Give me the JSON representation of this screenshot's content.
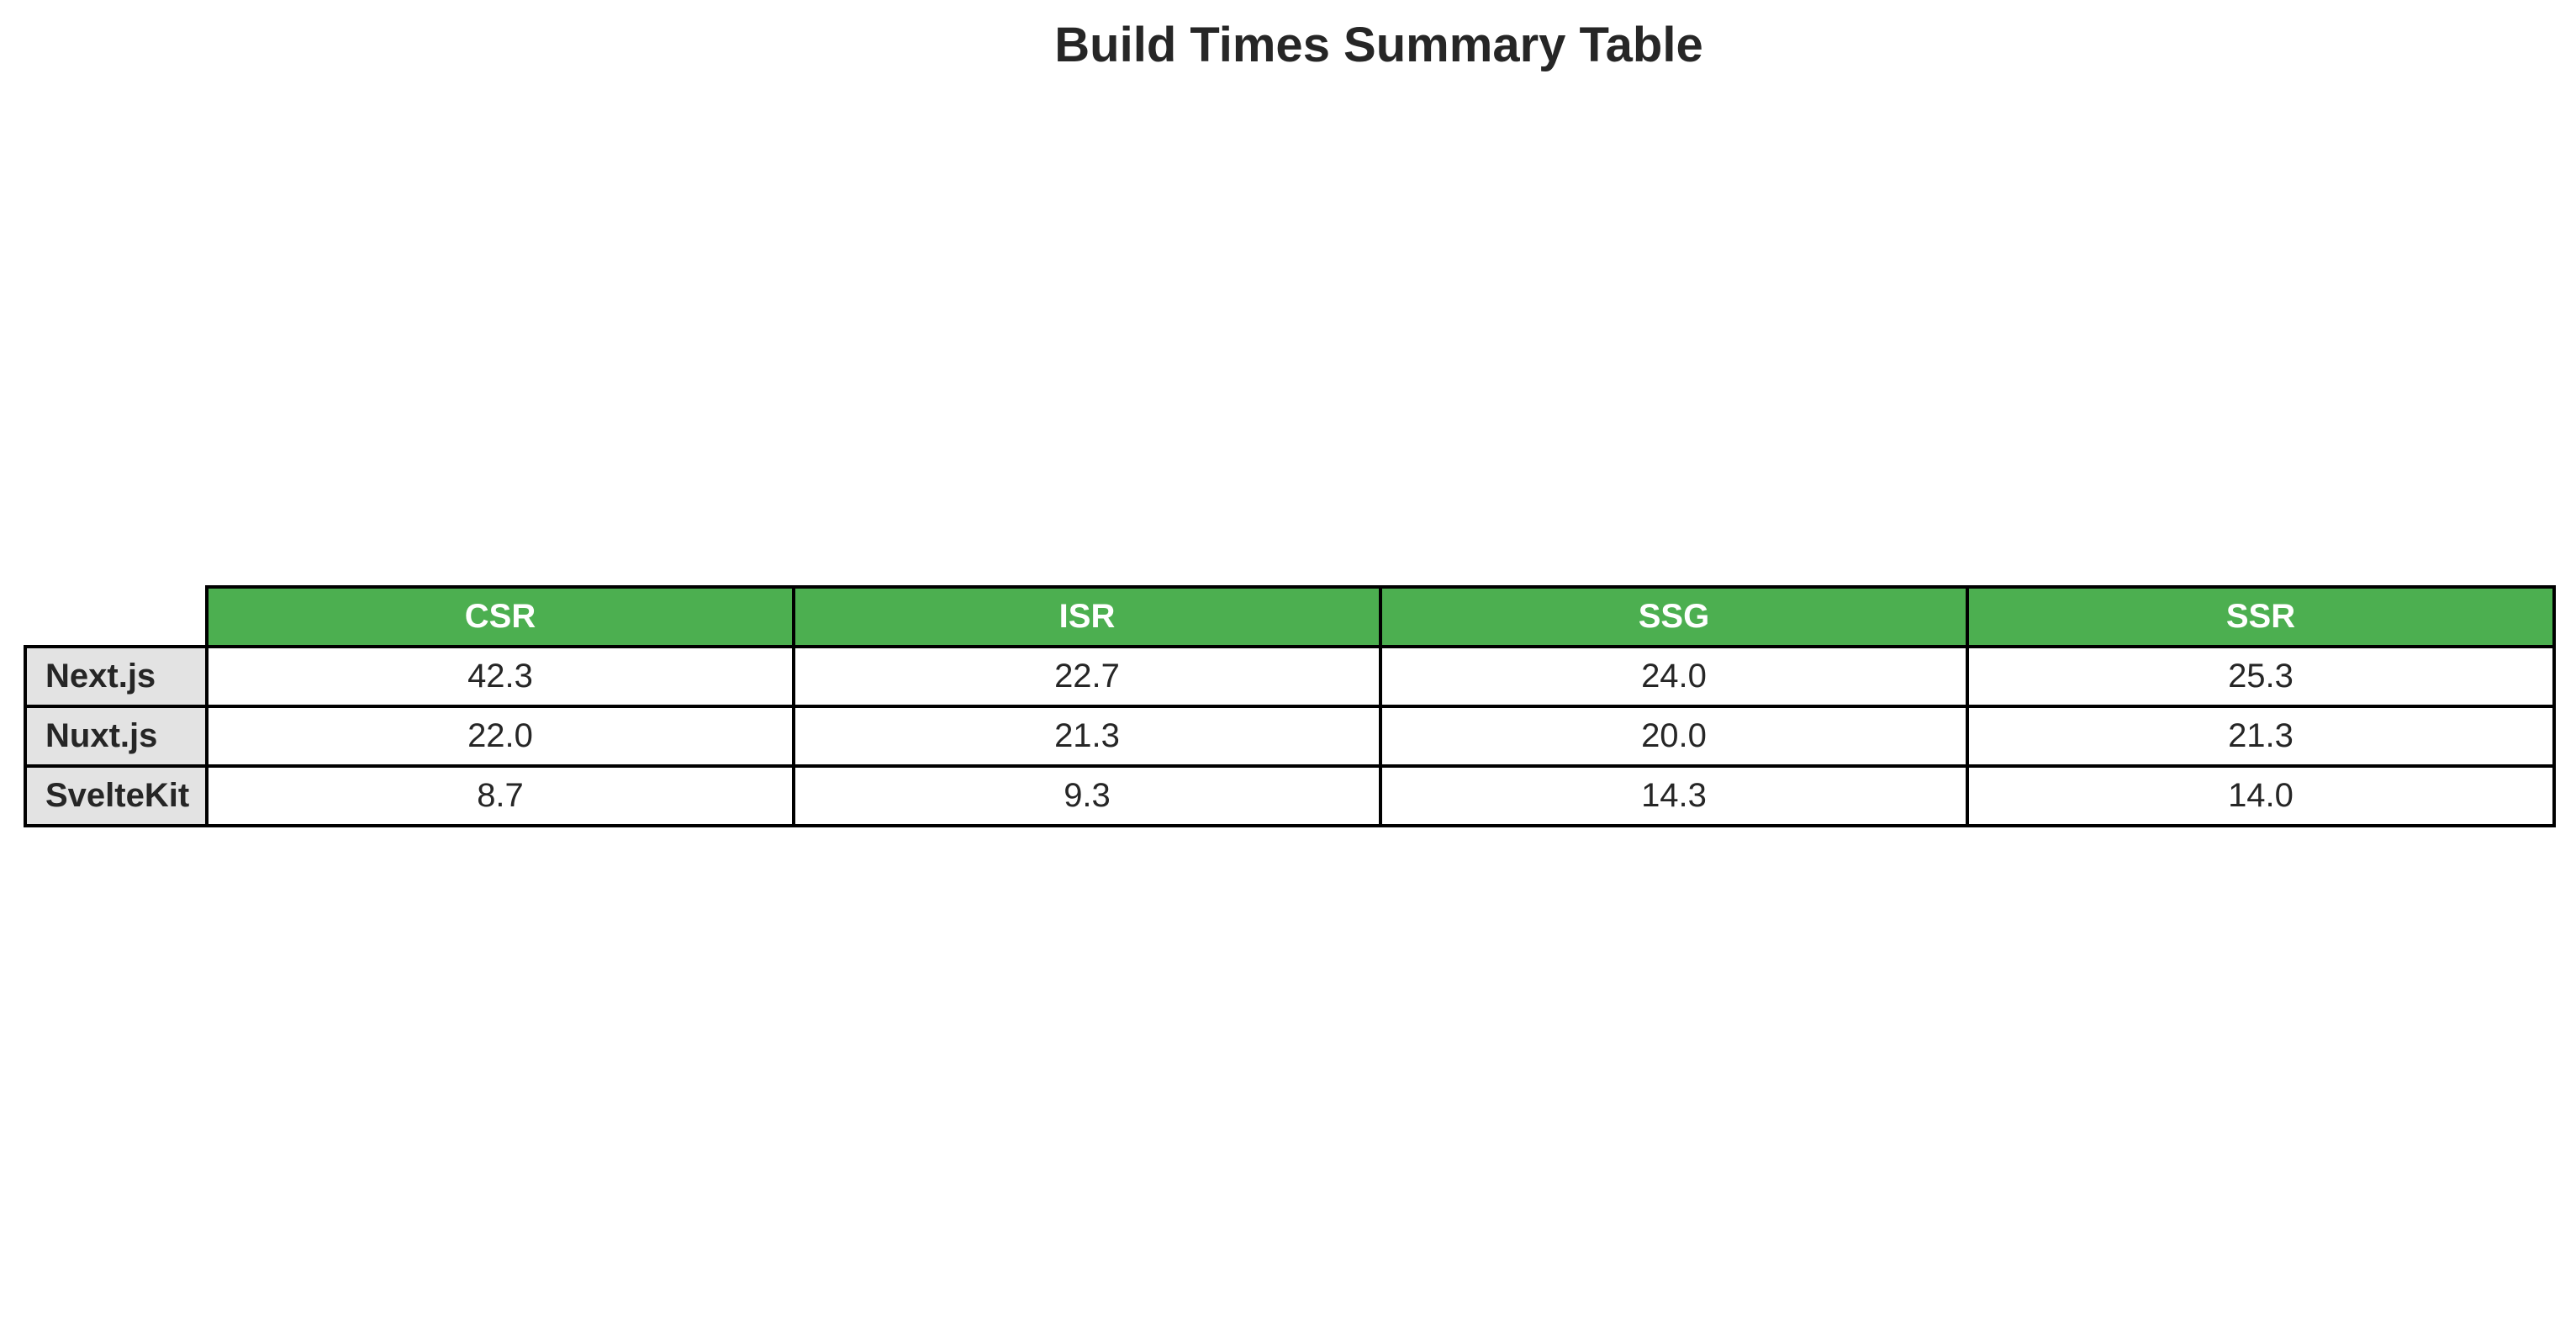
{
  "chart_data": {
    "type": "table",
    "title": "Build Times Summary Table",
    "columns": [
      "CSR",
      "ISR",
      "SSG",
      "SSR"
    ],
    "rows": [
      {
        "label": "Next.js",
        "values": [
          "42.3",
          "22.7",
          "24.0",
          "25.3"
        ]
      },
      {
        "label": "Nuxt.js",
        "values": [
          "22.0",
          "21.3",
          "20.0",
          "21.3"
        ]
      },
      {
        "label": "SvelteKit",
        "values": [
          "8.7",
          "9.3",
          "14.3",
          "14.0"
        ]
      }
    ]
  },
  "colors": {
    "header_background": "#4caf50",
    "header_text": "#ffffff",
    "row_header_background": "#e3e3e3",
    "cell_background": "#ffffff",
    "border": "#000000",
    "text": "#262626"
  }
}
